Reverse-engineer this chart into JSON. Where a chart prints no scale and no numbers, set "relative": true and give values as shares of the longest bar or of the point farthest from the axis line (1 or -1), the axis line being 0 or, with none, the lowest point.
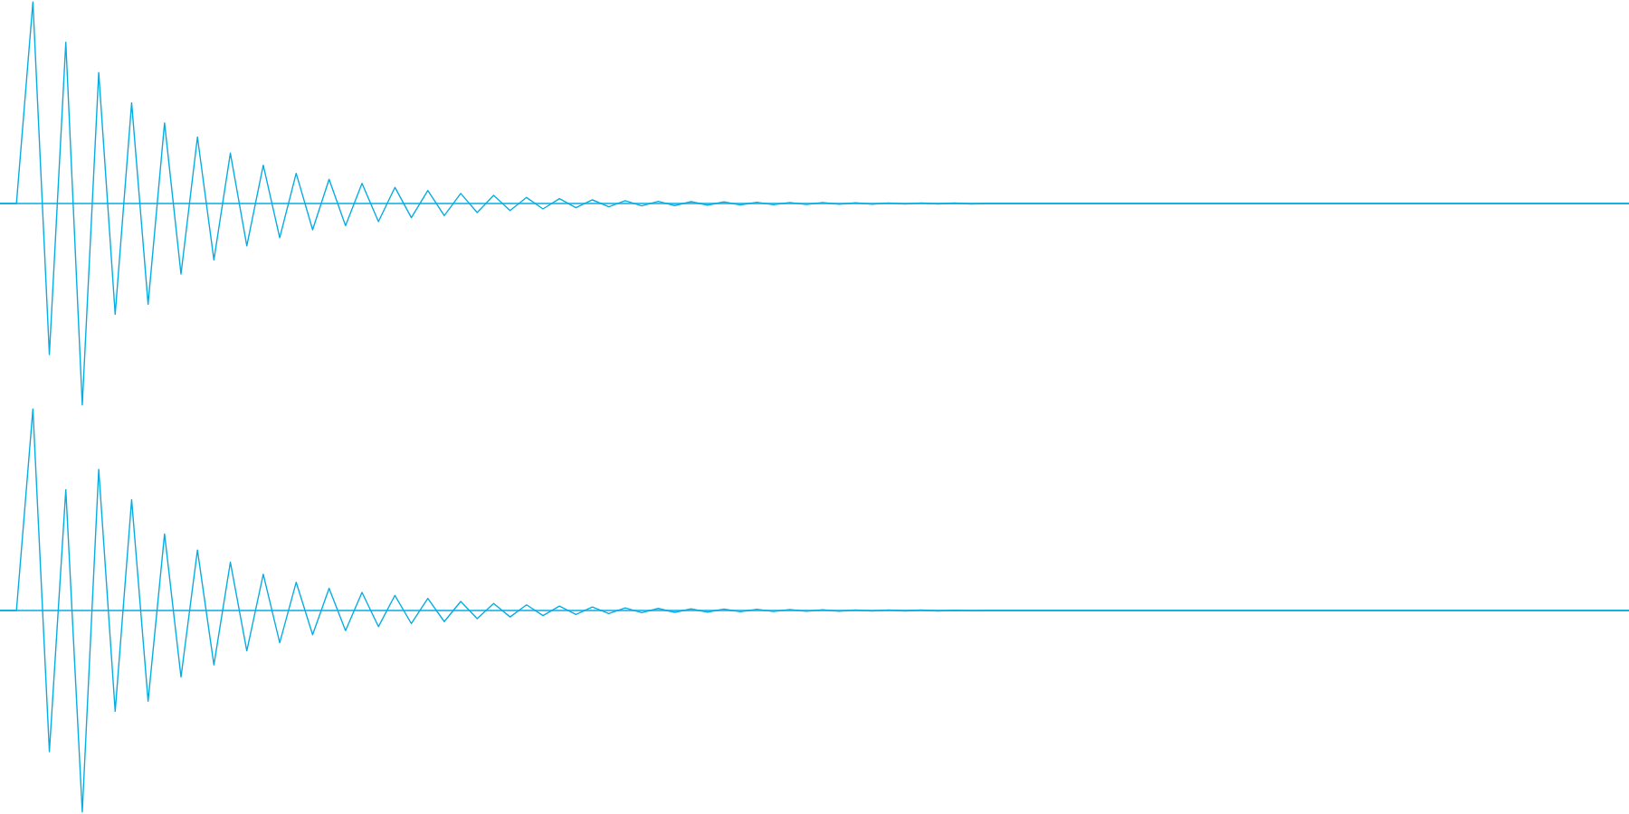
{
  "chart_data": [
    {
      "type": "line",
      "relative": true,
      "categories": [
        null,
        null,
        null,
        null,
        null,
        null,
        null,
        null,
        null,
        null,
        null,
        null,
        null,
        null,
        null,
        null,
        null,
        null,
        null,
        null,
        null,
        null,
        null,
        null,
        null,
        null,
        null,
        null,
        null,
        null,
        null,
        null,
        null,
        null,
        null,
        null,
        null,
        null,
        null,
        null,
        null,
        null,
        null,
        null,
        null,
        null,
        null,
        null,
        null,
        null,
        null,
        null,
        null,
        null,
        null,
        null,
        null,
        null,
        null,
        null,
        null,
        null,
        null,
        null,
        null,
        null,
        null,
        null,
        null,
        null,
        null,
        null,
        null,
        null,
        null,
        null,
        null,
        null,
        null,
        null,
        null,
        null,
        null,
        null,
        null,
        null,
        null,
        null,
        null,
        null,
        null,
        null,
        null,
        null,
        null,
        null,
        null,
        null,
        null,
        null
      ],
      "series": [
        {
          "color": "#07ace2",
          "values": [
            0,
            0,
            1,
            -0.75,
            0.8,
            -1,
            0.65,
            -0.55,
            0.5,
            -0.5,
            0.4,
            -0.35,
            0.33,
            -0.28,
            0.25,
            -0.21,
            0.19,
            -0.17,
            0.15,
            -0.13,
            0.12,
            -0.11,
            0.1,
            -0.09,
            0.08,
            -0.07,
            0.065,
            -0.06,
            0.05,
            -0.045,
            0.04,
            -0.035,
            0.03,
            -0.027,
            0.024,
            -0.021,
            0.018,
            -0.016,
            0.014,
            -0.012,
            0.011,
            -0.01,
            0.009,
            -0.008,
            0.008,
            -0.007,
            0.006,
            -0.006,
            0.005,
            -0.005,
            0.005,
            -0.004,
            0.004,
            -0.004,
            0.003,
            -0.003,
            0.003,
            -0.002,
            0.002,
            -0.002,
            0,
            0,
            0,
            0,
            0,
            0,
            0,
            0,
            0,
            0,
            0,
            0,
            0,
            0,
            0,
            0,
            0,
            0,
            0,
            0,
            0,
            0,
            0,
            0,
            0,
            0,
            0,
            0,
            0,
            0,
            0,
            0,
            0,
            0,
            0,
            0,
            0,
            0,
            0,
            0
          ]
        }
      ],
      "ref_lines": [
        {
          "axis": "y",
          "value": 0,
          "color": "#07ace2"
        }
      ]
    },
    {
      "type": "line",
      "relative": true,
      "categories": [
        null,
        null,
        null,
        null,
        null,
        null,
        null,
        null,
        null,
        null,
        null,
        null,
        null,
        null,
        null,
        null,
        null,
        null,
        null,
        null,
        null,
        null,
        null,
        null,
        null,
        null,
        null,
        null,
        null,
        null,
        null,
        null,
        null,
        null,
        null,
        null,
        null,
        null,
        null,
        null,
        null,
        null,
        null,
        null,
        null,
        null,
        null,
        null,
        null,
        null,
        null,
        null,
        null,
        null,
        null,
        null,
        null,
        null,
        null,
        null,
        null,
        null,
        null,
        null,
        null,
        null,
        null,
        null,
        null,
        null,
        null,
        null,
        null,
        null,
        null,
        null,
        null,
        null,
        null,
        null,
        null,
        null,
        null,
        null,
        null,
        null,
        null,
        null,
        null,
        null,
        null,
        null,
        null,
        null,
        null,
        null,
        null,
        null,
        null,
        null
      ],
      "series": [
        {
          "color": "#07ace2",
          "values": [
            0,
            0,
            1,
            -0.7,
            0.6,
            -1,
            0.7,
            -0.5,
            0.55,
            -0.45,
            0.38,
            -0.33,
            0.3,
            -0.27,
            0.24,
            -0.2,
            0.18,
            -0.16,
            0.14,
            -0.12,
            0.11,
            -0.1,
            0.09,
            -0.08,
            0.075,
            -0.065,
            0.06,
            -0.055,
            0.045,
            -0.04,
            0.035,
            -0.032,
            0.028,
            -0.025,
            0.022,
            -0.02,
            0.017,
            -0.015,
            0.013,
            -0.011,
            0.01,
            -0.009,
            0.008,
            -0.008,
            0.007,
            -0.006,
            0.006,
            -0.005,
            0.005,
            -0.004,
            0.004,
            -0.004,
            0.003,
            -0.003,
            0.003,
            -0.002,
            0.002,
            -0.002,
            0.001,
            -0.001,
            0,
            0,
            0,
            0,
            0,
            0,
            0,
            0,
            0,
            0,
            0,
            0,
            0,
            0,
            0,
            0,
            0,
            0,
            0,
            0,
            0,
            0,
            0,
            0,
            0,
            0,
            0,
            0,
            0,
            0,
            0,
            0,
            0,
            0,
            0,
            0,
            0,
            0,
            0,
            0
          ]
        }
      ],
      "ref_lines": [
        {
          "axis": "y",
          "value": 0,
          "color": "#07ace2"
        }
      ]
    }
  ]
}
